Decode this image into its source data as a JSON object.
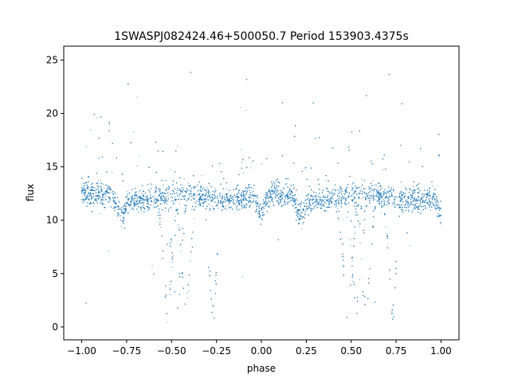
{
  "chart_data": {
    "type": "scatter",
    "title": "1SWASPJ082424.46+500050.7 Period 153903.4375s",
    "xlabel": "phase",
    "ylabel": "flux",
    "xlim": [
      -1.1,
      1.1
    ],
    "ylim": [
      -1.2,
      26.3
    ],
    "x_ticks": [
      -1.0,
      -0.75,
      -0.5,
      -0.25,
      0.0,
      0.25,
      0.5,
      0.75,
      1.0
    ],
    "x_tick_labels": [
      "−1.00",
      "−0.75",
      "−0.50",
      "−0.25",
      "0.00",
      "0.25",
      "0.50",
      "0.75",
      "1.00"
    ],
    "y_ticks": [
      0,
      5,
      10,
      15,
      20,
      25
    ],
    "y_tick_labels": [
      "0",
      "5",
      "10",
      "15",
      "20",
      "25"
    ],
    "grid": false,
    "legend": "none",
    "marker_color": "#1f77b4",
    "baseline_flux": 12.2,
    "primary_eclipse_minima": [
      {
        "phase": -0.52,
        "flux": 1.5
      },
      {
        "phase": -0.47,
        "flux": 1.5
      },
      {
        "phase": -0.42,
        "flux": 1.7
      },
      {
        "phase": 0.48,
        "flux": 1.5
      },
      {
        "phase": 0.53,
        "flux": 1.5
      },
      {
        "phase": 0.58,
        "flux": 1.7
      }
    ],
    "secondary_eclipse_minima": [
      {
        "phase": -0.27,
        "flux": 1.5
      },
      {
        "phase": 0.73,
        "flux": 1.5
      }
    ],
    "shallow_dips": [
      {
        "phase": -0.78,
        "flux": 10.5
      },
      {
        "phase": 0.0,
        "flux": 10.5
      },
      {
        "phase": 0.22,
        "flux": 10.5
      },
      {
        "phase": 1.0,
        "flux": 10.5
      }
    ]
  }
}
